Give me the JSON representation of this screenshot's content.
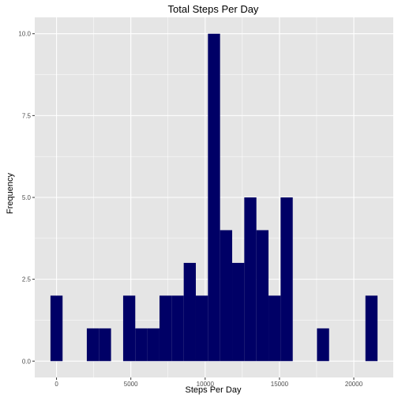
{
  "chart_data": {
    "type": "bar",
    "title": "Total Steps Per Day",
    "xlabel": "Steps Per Day",
    "ylabel": "Frequency",
    "bin_width": 815,
    "bins": [
      {
        "center": 0,
        "count": 2
      },
      {
        "center": 2445,
        "count": 1
      },
      {
        "center": 3260,
        "count": 1
      },
      {
        "center": 4890,
        "count": 2
      },
      {
        "center": 5705,
        "count": 1
      },
      {
        "center": 6520,
        "count": 1
      },
      {
        "center": 7335,
        "count": 2
      },
      {
        "center": 8150,
        "count": 2
      },
      {
        "center": 8965,
        "count": 3
      },
      {
        "center": 9780,
        "count": 2
      },
      {
        "center": 10595,
        "count": 10
      },
      {
        "center": 11410,
        "count": 4
      },
      {
        "center": 12225,
        "count": 3
      },
      {
        "center": 13040,
        "count": 5
      },
      {
        "center": 13855,
        "count": 4
      },
      {
        "center": 14670,
        "count": 2
      },
      {
        "center": 15485,
        "count": 5
      },
      {
        "center": 17930,
        "count": 1
      },
      {
        "center": 21190,
        "count": 2
      }
    ],
    "xticks": [
      {
        "value": 0,
        "label": "0"
      },
      {
        "value": 5000,
        "label": "5000"
      },
      {
        "value": 10000,
        "label": "10000"
      },
      {
        "value": 15000,
        "label": "15000"
      },
      {
        "value": 20000,
        "label": "20000"
      }
    ],
    "yticks": [
      {
        "value": 0,
        "label": "0.0"
      },
      {
        "value": 2.5,
        "label": "2.5"
      },
      {
        "value": 5,
        "label": "5.0"
      },
      {
        "value": 7.5,
        "label": "7.5"
      },
      {
        "value": 10,
        "label": "10.0"
      }
    ],
    "xlim": [
      -1465,
      22655
    ],
    "ylim": [
      -0.5,
      10.5
    ],
    "bar_color": "#000066",
    "panel_color": "#e5e5e5",
    "grid_color": "#ffffff",
    "grid": true
  }
}
